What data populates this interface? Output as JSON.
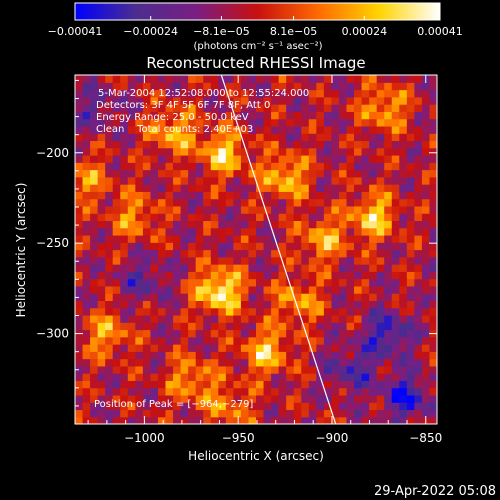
{
  "chart_data": {
    "type": "heatmap",
    "title": "Reconstructed RHESSI Image",
    "xlabel": "Heliocentric X (arcsec)",
    "ylabel": "Heliocentric Y (arcsec)",
    "xlim": [
      -1037,
      -844
    ],
    "ylim": [
      -350,
      -157
    ],
    "x_ticks": [
      {
        "value": -1000,
        "label": "−1000"
      },
      {
        "value": -950,
        "label": "−950"
      },
      {
        "value": -900,
        "label": "−900"
      },
      {
        "value": -850,
        "label": "−850"
      }
    ],
    "y_ticks": [
      {
        "value": -200,
        "label": "−200"
      },
      {
        "value": -250,
        "label": "−250"
      },
      {
        "value": -300,
        "label": "−300"
      }
    ],
    "colorbar": {
      "unit_label": "(photons cm⁻² s⁻¹ asec⁻²)",
      "range": [
        -0.00041,
        0.00041
      ],
      "ticks": [
        {
          "value": -0.00041,
          "label": "−0.00041"
        },
        {
          "value": -0.00024,
          "label": "−0.00024"
        },
        {
          "value": -8.1e-05,
          "label": "−8.1e−05"
        },
        {
          "value": 8.1e-05,
          "label": "8.1e−05"
        },
        {
          "value": 0.00024,
          "label": "0.00024"
        },
        {
          "value": 0.00041,
          "label": "0.00041"
        }
      ],
      "colors": [
        "#0000ff",
        "#4b2d8f",
        "#7a1e82",
        "#c8100f",
        "#ff6a00",
        "#ffd400",
        "#ffffff"
      ]
    },
    "annotations": [
      "5-Mar-2004 12:52:08.000 to 12:55:24.000",
      "Detectors: 3F 4F 5F 6F 7F 8F, Att 0",
      "Energy Range: 25.0 - 50.0 keV",
      "Clean    Total counts: 2.40E+03"
    ],
    "peak_label": "Position of Peak = [−964,−279]",
    "peak": {
      "x": -964,
      "y": -279
    },
    "limb_line": [
      {
        "x": -959,
        "y": -157
      },
      {
        "x": -898,
        "y": -350
      }
    ],
    "hotspots": [
      {
        "x": -960,
        "y": -276,
        "v": 0.00041
      },
      {
        "x": -958,
        "y": -200,
        "v": 0.00032
      },
      {
        "x": -985,
        "y": -188,
        "v": 0.00028
      },
      {
        "x": -925,
        "y": -213,
        "v": 0.0003
      },
      {
        "x": -878,
        "y": -235,
        "v": 0.00032
      },
      {
        "x": -905,
        "y": -248,
        "v": 0.00026
      },
      {
        "x": -935,
        "y": -310,
        "v": 0.0003
      },
      {
        "x": -1020,
        "y": -300,
        "v": 0.00024
      },
      {
        "x": -975,
        "y": -325,
        "v": 0.00024
      },
      {
        "x": -918,
        "y": -282,
        "v": 0.00024
      },
      {
        "x": -1030,
        "y": -215,
        "v": 0.0002
      },
      {
        "x": -872,
        "y": -175,
        "v": 0.00026
      },
      {
        "x": -1005,
        "y": -235,
        "v": 0.00022
      },
      {
        "x": -955,
        "y": -340,
        "v": 0.0002
      },
      {
        "x": -890,
        "y": -320,
        "v": -0.00022
      },
      {
        "x": -870,
        "y": -300,
        "v": -0.00028
      },
      {
        "x": -1000,
        "y": -270,
        "v": -0.00018
      },
      {
        "x": -1025,
        "y": -175,
        "v": -0.00016
      },
      {
        "x": -860,
        "y": -335,
        "v": -0.0003
      }
    ]
  },
  "footer": {
    "timestamp": "29-Apr-2022 05:08"
  }
}
